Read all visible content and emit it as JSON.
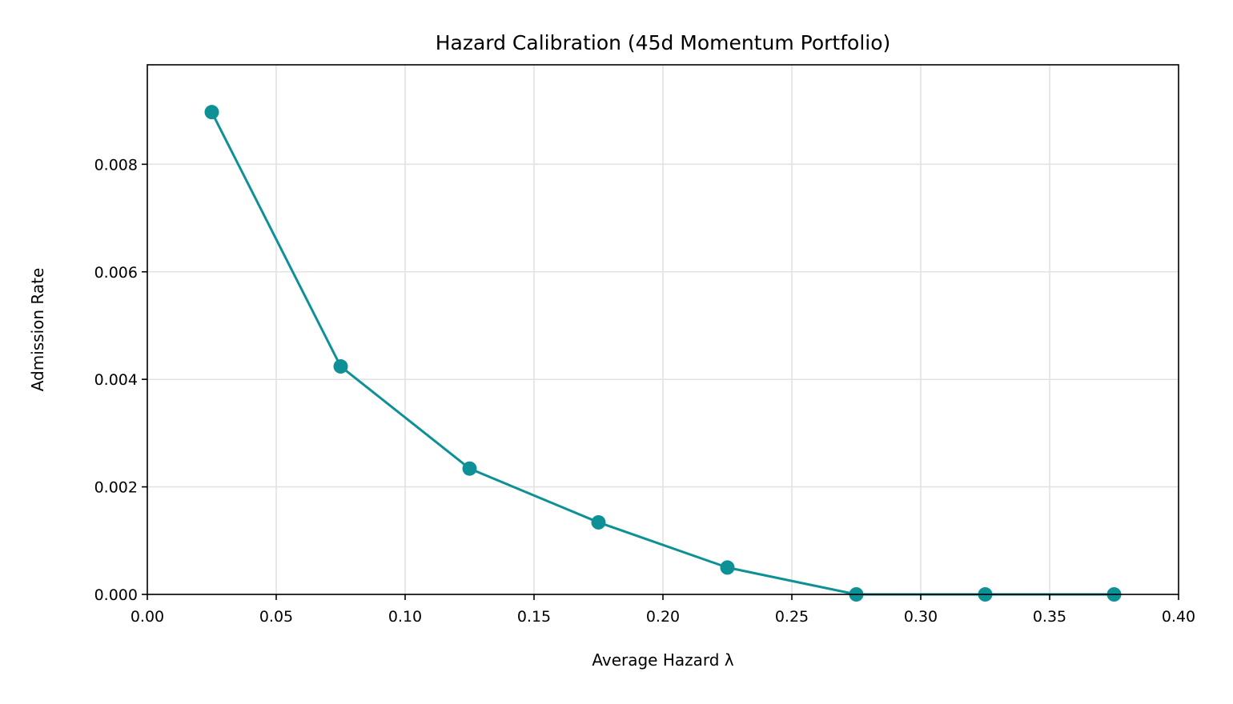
{
  "chart_data": {
    "type": "line",
    "title": "Hazard Calibration (45d Momentum Portfolio)",
    "xlabel": "Average Hazard λ",
    "ylabel": "Admission Rate",
    "xlim": [
      0.0,
      0.4
    ],
    "ylim": [
      0.0,
      0.00985
    ],
    "x_ticks": [
      0.0,
      0.05,
      0.1,
      0.15,
      0.2,
      0.25,
      0.3,
      0.35,
      0.4
    ],
    "x_tick_labels": [
      "0.00",
      "0.05",
      "0.10",
      "0.15",
      "0.20",
      "0.25",
      "0.30",
      "0.35",
      "0.40"
    ],
    "y_ticks": [
      0.0,
      0.002,
      0.004,
      0.006,
      0.008
    ],
    "y_tick_labels": [
      "0.000",
      "0.002",
      "0.004",
      "0.006",
      "0.008"
    ],
    "grid": true,
    "legend": "none",
    "series": [
      {
        "color": "#0e9196",
        "marker": "circle",
        "x": [
          0.025,
          0.075,
          0.125,
          0.175,
          0.225,
          0.275,
          0.325,
          0.375
        ],
        "y": [
          0.00897,
          0.00424,
          0.00234,
          0.00134,
          0.0005,
          0.0,
          0.0,
          0.0
        ]
      }
    ]
  }
}
